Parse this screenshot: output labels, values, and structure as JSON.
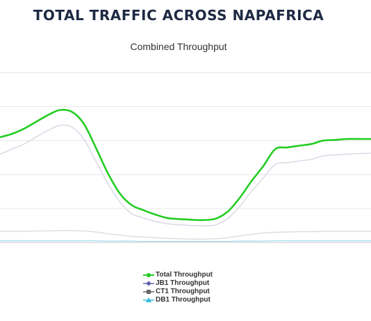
{
  "page_title": "TOTAL TRAFFIC ACROSS NAPAFRICA",
  "chart_data": {
    "type": "line",
    "title": "Combined Throughput",
    "xlabel": "",
    "ylabel": "",
    "ylim": [
      0,
      5.3
    ],
    "grid": true,
    "legend_position": "bottom-center",
    "series": [
      {
        "name": "Total Throughput",
        "color": "#22cc22",
        "marker": "circle",
        "values": [
          3.1,
          3.2,
          3.35,
          3.55,
          3.75,
          3.9,
          3.85,
          3.5,
          2.8,
          2.05,
          1.45,
          1.1,
          0.95,
          0.82,
          0.72,
          0.69,
          0.67,
          0.66,
          0.7,
          0.9,
          1.3,
          1.8,
          2.25,
          2.75,
          2.8,
          2.85,
          2.9,
          3.0,
          3.02,
          3.05,
          3.05,
          3.05
        ]
      },
      {
        "name": "JB1 Throughput",
        "color": "#dcdce8",
        "marker": "diamond",
        "values": [
          2.6,
          2.75,
          2.9,
          3.1,
          3.3,
          3.45,
          3.4,
          3.05,
          2.4,
          1.75,
          1.2,
          0.85,
          0.72,
          0.62,
          0.55,
          0.52,
          0.5,
          0.49,
          0.52,
          0.7,
          1.05,
          1.5,
          1.9,
          2.3,
          2.35,
          2.4,
          2.45,
          2.55,
          2.58,
          2.6,
          2.62,
          2.63
        ]
      },
      {
        "name": "CT1 Throughput",
        "color": "#e0e0e0",
        "marker": "square",
        "values": [
          0.33,
          0.33,
          0.33,
          0.34,
          0.34,
          0.35,
          0.35,
          0.34,
          0.31,
          0.26,
          0.22,
          0.18,
          0.16,
          0.14,
          0.12,
          0.11,
          0.1,
          0.1,
          0.11,
          0.14,
          0.19,
          0.24,
          0.28,
          0.3,
          0.31,
          0.32,
          0.32,
          0.33,
          0.33,
          0.33,
          0.33,
          0.33
        ]
      },
      {
        "name": "DB1 Throughput",
        "color": "#9fd8ef",
        "marker": "triangle",
        "values": [
          0.05,
          0.05,
          0.05,
          0.05,
          0.05,
          0.05,
          0.05,
          0.05,
          0.05,
          0.04,
          0.04,
          0.04,
          0.03,
          0.03,
          0.03,
          0.03,
          0.03,
          0.03,
          0.03,
          0.03,
          0.04,
          0.04,
          0.04,
          0.05,
          0.05,
          0.05,
          0.05,
          0.05,
          0.05,
          0.05,
          0.05,
          0.05
        ]
      }
    ]
  }
}
